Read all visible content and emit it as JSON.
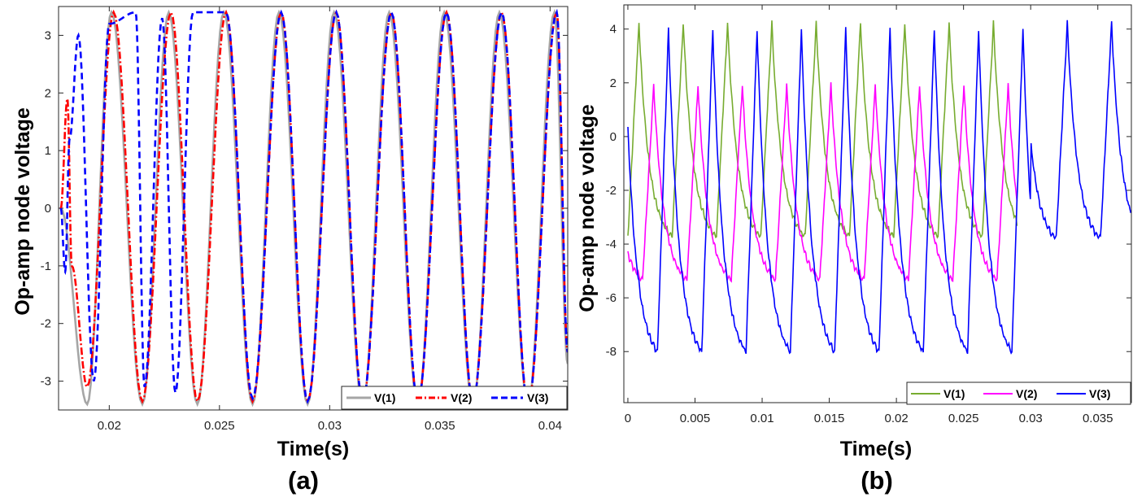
{
  "chart_data": [
    {
      "type": "line",
      "panel_label": "(a)",
      "xlabel": "Time(s)",
      "ylabel": "Op-amp node voltage",
      "xlim": [
        0.0177,
        0.0408
      ],
      "ylim": [
        -3.5,
        3.5
      ],
      "xticks": [
        0.02,
        0.025,
        0.03,
        0.035,
        0.04
      ],
      "xtick_labels": [
        "0.02",
        "0.025",
        "0.03",
        "0.035",
        "0.04"
      ],
      "yticks": [
        -3,
        -2,
        -1,
        0,
        1,
        2,
        3
      ],
      "ytick_labels": [
        "-3",
        "-2",
        "-1",
        "0",
        "1",
        "2",
        "3"
      ],
      "legend_position": "bottom-right",
      "series": [
        {
          "name": "V(1)",
          "color": "#a6a6a6",
          "style": "solid",
          "description": "sinusoid amplitude 3.4, period ~0.0025 s",
          "x": [
            0.0178,
            0.019,
            0.0201,
            0.0215,
            0.0227,
            0.024,
            0.0252,
            0.0265,
            0.0277,
            0.029,
            0.0302,
            0.0315,
            0.0327,
            0.034,
            0.0352,
            0.0365,
            0.0377,
            0.039,
            0.0402,
            0.0408
          ],
          "y": [
            0.0,
            -3.4,
            3.4,
            -3.4,
            3.4,
            -3.4,
            3.4,
            -3.4,
            3.4,
            -3.4,
            3.4,
            -3.4,
            3.4,
            -3.4,
            3.4,
            -3.4,
            3.4,
            -3.4,
            3.4,
            -2.7
          ]
        },
        {
          "name": "V(2)",
          "color": "#ff0000",
          "style": "dashdot",
          "description": "start-up burst to ~1.9 then sinusoid amplitude 3.4 lagging V(1)",
          "x": [
            0.0178,
            0.0181,
            0.0183,
            0.019,
            0.0202,
            0.0215,
            0.0228,
            0.024,
            0.0253,
            0.0265,
            0.0278,
            0.029,
            0.0303,
            0.0315,
            0.0328,
            0.034,
            0.0353,
            0.0365,
            0.0378,
            0.039,
            0.0403,
            0.0408
          ],
          "y": [
            0.0,
            1.9,
            -1.0,
            -3.1,
            3.4,
            -3.35,
            3.4,
            -3.35,
            3.4,
            -3.35,
            3.4,
            -3.35,
            3.4,
            -3.35,
            3.4,
            -3.35,
            3.4,
            -3.35,
            3.4,
            -3.4,
            3.4,
            -2.5
          ]
        },
        {
          "name": "V(3)",
          "color": "#0000ff",
          "style": "dashed",
          "description": "start-up transient then sinusoid converging to V(2)",
          "x": [
            0.0178,
            0.018,
            0.0182,
            0.0186,
            0.0193,
            0.02,
            0.0212,
            0.0216,
            0.0224,
            0.023,
            0.0238,
            0.0253,
            0.0265,
            0.0278,
            0.029,
            0.0303,
            0.0315,
            0.0328,
            0.034,
            0.0353,
            0.0365,
            0.0378,
            0.039,
            0.0403,
            0.0408
          ],
          "y": [
            0.0,
            -1.1,
            1.2,
            3.0,
            -3.0,
            3.2,
            3.4,
            -3.1,
            3.3,
            -3.2,
            3.4,
            3.4,
            -3.3,
            3.4,
            -3.35,
            3.4,
            -3.35,
            3.4,
            -3.35,
            3.4,
            -3.35,
            3.4,
            -3.4,
            3.4,
            -2.5
          ]
        }
      ]
    },
    {
      "type": "line",
      "panel_label": "(b)",
      "xlabel": "Time(s)",
      "ylabel": "Op-amp node voltage",
      "xlim": [
        -0.0003,
        0.0375
      ],
      "ylim": [
        -9.9,
        4.9
      ],
      "xticks": [
        0,
        0.005,
        0.01,
        0.015,
        0.02,
        0.025,
        0.03,
        0.035
      ],
      "xtick_labels": [
        "0",
        "0.005",
        "0.01",
        "0.015",
        "0.02",
        "0.025",
        "0.03",
        "0.035"
      ],
      "yticks": [
        -8,
        -6,
        -4,
        -2,
        0,
        2,
        4
      ],
      "ytick_labels": [
        "-8",
        "-6",
        "-4",
        "-2",
        "0",
        "2",
        "4"
      ],
      "legend_position": "bottom-right",
      "series": [
        {
          "name": "V(1)",
          "color": "#77ac30",
          "style": "solid",
          "description": "sawtooth oscillation between ~-3.7 and ~4.2, period ~0.0033 s, ends at t~0.029 s",
          "period": 0.0033,
          "low": -3.7,
          "high": 4.2,
          "t_start": 0.0,
          "t_end": 0.029
        },
        {
          "name": "V(2)",
          "color": "#ff00ff",
          "style": "solid",
          "description": "oscillation between ~-5.3 and ~1.9 with stepped segments, ends at t~0.029 s",
          "period": 0.0033,
          "low": -5.3,
          "high": 1.9,
          "t_start": 0.0,
          "t_end": 0.029
        },
        {
          "name": "V(3)",
          "color": "#0000ff",
          "style": "solid",
          "description": "oscillation between ~-8.0 and ~4.0; after t~0.03 s between ~-3.8 and ~4.2",
          "period": 0.0033,
          "low": -8.0,
          "high": 4.0,
          "t_start": 0.0,
          "t_end": 0.0375,
          "late_low": -3.8,
          "late_high": 4.2,
          "late_from": 0.03
        }
      ]
    }
  ]
}
